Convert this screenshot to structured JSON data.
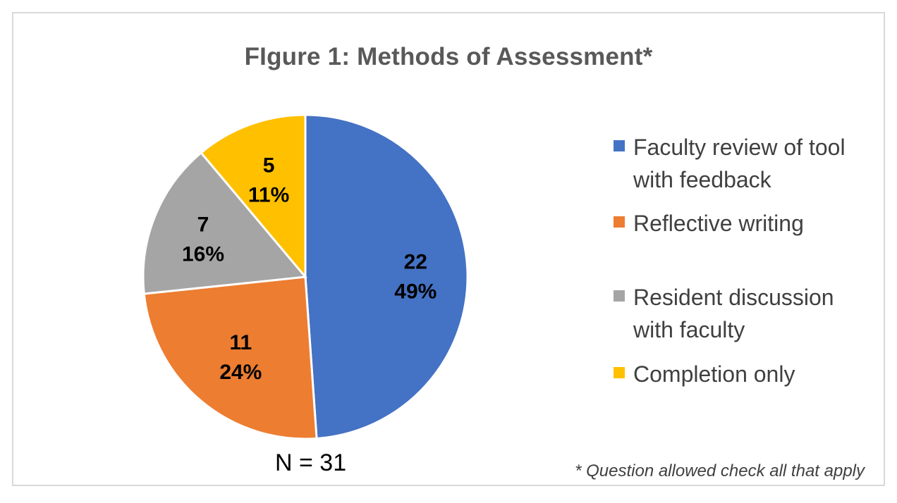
{
  "chart_data": {
    "type": "pie",
    "title": "FIgure 1: Methods of Assessment*",
    "categories": [
      "Faculty review of tool with feedback",
      "Reflective writing",
      "Resident discussion with faculty",
      "Completion only"
    ],
    "values": [
      22,
      11,
      7,
      5
    ],
    "percent_labels": [
      "49%",
      "24%",
      "16%",
      "11%"
    ],
    "value_labels": [
      "22",
      "11",
      "7",
      "5"
    ],
    "colors": [
      "#4472c4",
      "#ed7d31",
      "#a5a5a5",
      "#ffc000"
    ],
    "legend_placement": "right",
    "start_angle": "12 o'clock",
    "direction": "clockwise"
  },
  "legend": {
    "items": [
      {
        "label": "Faculty review of tool with feedback",
        "color": "#4472c4"
      },
      {
        "label": "Reflective writing",
        "color": "#ed7d31"
      },
      {
        "label": "Resident discussion with faculty",
        "color": "#a5a5a5"
      },
      {
        "label": "Completion only",
        "color": "#ffc000"
      }
    ]
  },
  "annotations": {
    "n_label": "N = 31",
    "footnote": "* Question allowed check all that apply"
  }
}
